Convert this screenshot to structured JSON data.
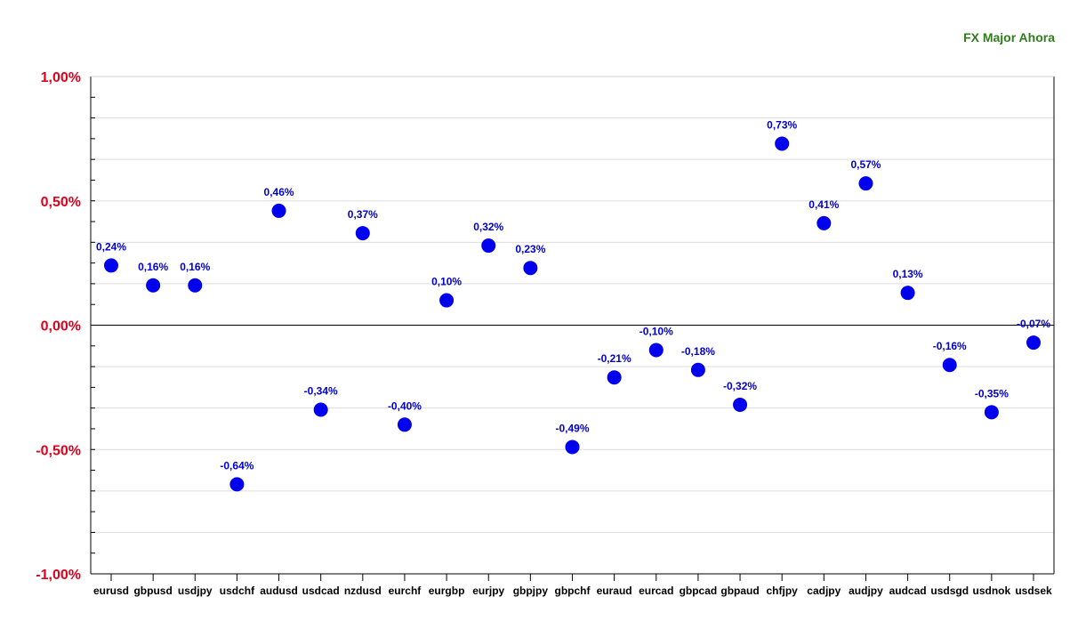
{
  "chart_data": {
    "type": "scatter",
    "title": "FX Major Ahora",
    "xlabel": "",
    "ylabel": "",
    "ylim": [
      -1.0,
      1.0
    ],
    "y_ticks": [
      1.0,
      0.5,
      0.0,
      -0.5,
      -1.0
    ],
    "y_tick_labels": [
      "1,00%",
      "0,50%",
      "0,00%",
      "-0,50%",
      "-1,00%"
    ],
    "grid": true,
    "colors": {
      "point": "#0000ee",
      "label": "#0000cc",
      "ytick": "#e0001b",
      "title": "#2e7d1b"
    },
    "categories": [
      "eurusd",
      "gbpusd",
      "usdjpy",
      "usdchf",
      "audusd",
      "usdcad",
      "nzdusd",
      "eurchf",
      "eurgbp",
      "eurjpy",
      "gbpjpy",
      "gbpchf",
      "euraud",
      "eurcad",
      "gbpcad",
      "gbpaud",
      "chfjpy",
      "cadjpy",
      "audjpy",
      "audcad",
      "usdsgd",
      "usdnok",
      "usdsek"
    ],
    "values": [
      0.24,
      0.16,
      0.16,
      -0.64,
      0.46,
      -0.34,
      0.37,
      -0.4,
      0.1,
      0.32,
      0.23,
      -0.49,
      -0.21,
      -0.1,
      -0.18,
      -0.32,
      0.73,
      0.41,
      0.57,
      0.13,
      -0.16,
      -0.35,
      -0.07
    ],
    "value_labels": [
      "0,24%",
      "0,16%",
      "0,16%",
      "-0,64%",
      "0,46%",
      "-0,34%",
      "0,37%",
      "-0,40%",
      "0,10%",
      "0,32%",
      "0,23%",
      "-0,49%",
      "-0,21%",
      "-0,10%",
      "-0,18%",
      "-0,32%",
      "0,73%",
      "0,41%",
      "0,57%",
      "0,13%",
      "-0,16%",
      "-0,35%",
      "-0,07%"
    ]
  }
}
